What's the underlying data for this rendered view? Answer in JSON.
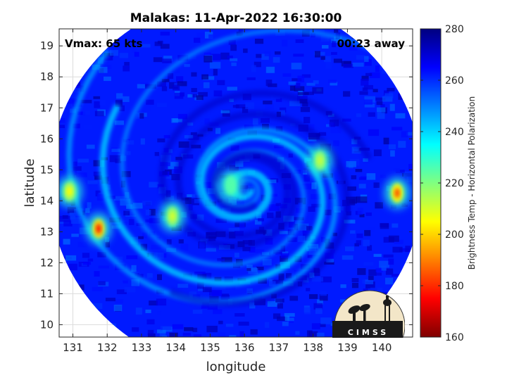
{
  "chart_data": {
    "type": "heatmap",
    "title": "Malakas: 11-Apr-2022 16:30:00",
    "annotations": {
      "vmax": "Vmax: 65 kts",
      "away": "00:23 away"
    },
    "xlabel": "longitude",
    "ylabel": "latitude",
    "xlim": [
      130.6,
      140.9
    ],
    "ylim": [
      9.6,
      19.55
    ],
    "xticks": [
      "131",
      "132",
      "133",
      "134",
      "135",
      "136",
      "137",
      "138",
      "139",
      "140"
    ],
    "yticks": [
      "10",
      "11",
      "12",
      "13",
      "14",
      "15",
      "16",
      "17",
      "18",
      "19"
    ],
    "grid": true,
    "colorbar": {
      "label": "Brightness Temp - Horizontal Polarization",
      "range": [
        160,
        280
      ],
      "ticks": [
        "160",
        "180",
        "200",
        "220",
        "240",
        "260",
        "280"
      ],
      "colormap": "parula-like",
      "colors": [
        "#7f0000",
        "#ff0000",
        "#ff8000",
        "#ffff00",
        "#80ff80",
        "#00ffff",
        "#0080ff",
        "#0000ff",
        "#00007f"
      ]
    },
    "swath": {
      "center": [
        135.75,
        14.55
      ],
      "radius_deg": 5.45
    },
    "storm_center": [
      136.0,
      14.4
    ],
    "warm_background_tb": 262,
    "cold_features": [
      {
        "lon": 131.75,
        "lat": 13.1,
        "tb": 178
      },
      {
        "lon": 140.45,
        "lat": 14.25,
        "tb": 185
      },
      {
        "lon": 130.9,
        "lat": 14.3,
        "tb": 205
      },
      {
        "lon": 133.9,
        "lat": 13.5,
        "tb": 210
      },
      {
        "lon": 138.2,
        "lat": 15.3,
        "tb": 212
      },
      {
        "lon": 135.6,
        "lat": 14.5,
        "tb": 225
      }
    ],
    "logo": "CIMSS"
  }
}
